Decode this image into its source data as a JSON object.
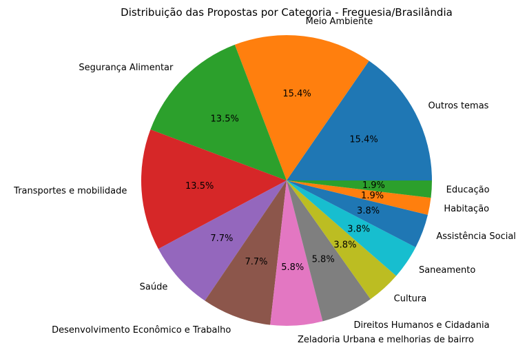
{
  "chart_data": {
    "type": "pie",
    "title": "Distribuição das Propostas por Categoria - Freguesia/Brasilândia",
    "start_angle_deg": 0,
    "direction": "counterclockwise",
    "slices": [
      {
        "label": "Outros temas",
        "value": 15.4,
        "pct_label": "15.4%",
        "color": "#1f77b4"
      },
      {
        "label": "Meio Ambiente",
        "value": 15.4,
        "pct_label": "15.4%",
        "color": "#ff7f0e"
      },
      {
        "label": "Segurança Alimentar",
        "value": 13.5,
        "pct_label": "13.5%",
        "color": "#2ca02c"
      },
      {
        "label": "Transportes e mobilidade",
        "value": 13.5,
        "pct_label": "13.5%",
        "color": "#d62728"
      },
      {
        "label": "Saúde",
        "value": 7.7,
        "pct_label": "7.7%",
        "color": "#9467bd"
      },
      {
        "label": "Desenvolvimento Econômico e Trabalho",
        "value": 7.7,
        "pct_label": "7.7%",
        "color": "#8c564b"
      },
      {
        "label": "Zeladoria Urbana e melhorias de bairro",
        "value": 5.8,
        "pct_label": "5.8%",
        "color": "#e377c2"
      },
      {
        "label": "Direitos Humanos e Cidadania",
        "value": 5.8,
        "pct_label": "5.8%",
        "color": "#7f7f7f"
      },
      {
        "label": "Cultura",
        "value": 3.8,
        "pct_label": "3.8%",
        "color": "#bcbd22"
      },
      {
        "label": "Saneamento",
        "value": 3.8,
        "pct_label": "3.8%",
        "color": "#17becf"
      },
      {
        "label": "Assistência Social",
        "value": 3.8,
        "pct_label": "3.8%",
        "color": "#1f77b4"
      },
      {
        "label": "Habitação",
        "value": 1.9,
        "pct_label": "1.9%",
        "color": "#ff7f0e"
      },
      {
        "label": "Educação",
        "value": 1.9,
        "pct_label": "1.9%",
        "color": "#2ca02c"
      }
    ]
  }
}
